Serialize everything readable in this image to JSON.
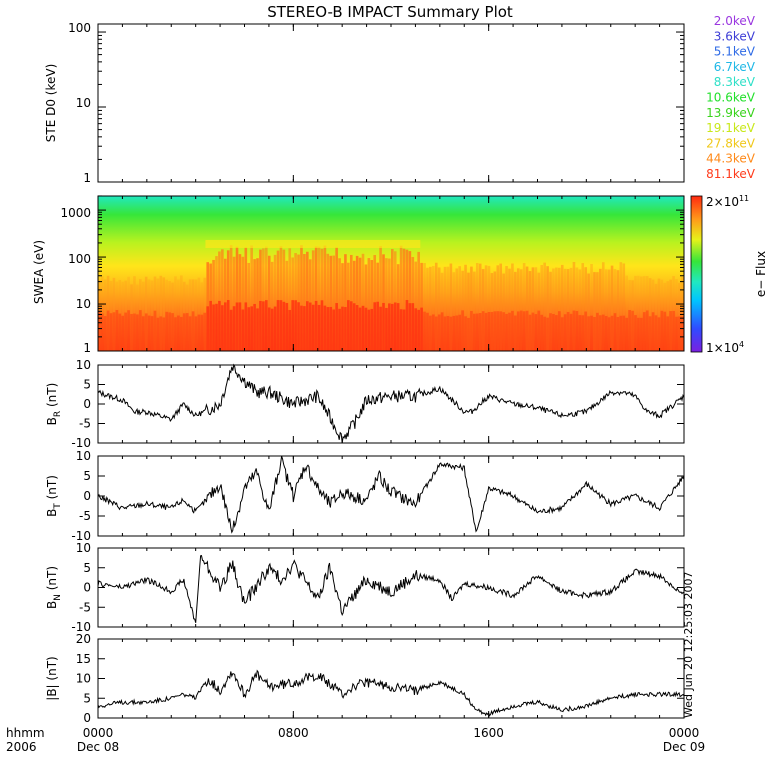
{
  "title": "STEREO-B IMPACT Summary Plot",
  "time_axis": {
    "row1": [
      "0000",
      "0800",
      "1600",
      "0000"
    ],
    "row2": [
      "Dec 08",
      "",
      "",
      "Dec 09"
    ],
    "left_row1": "hhmm",
    "left_row2": "2006",
    "hours": [
      0,
      8,
      16,
      24
    ]
  },
  "side_stamp": "Wed Jun 20 12:25:03 2007",
  "colors": {
    "spectrogram": [
      "#7b1fe0",
      "#2f4bff",
      "#00c4ff",
      "#21e8c0",
      "#36e63a",
      "#b9f21f",
      "#ffe51a",
      "#ff9a1a",
      "#ff4b1a",
      "#ff2a10"
    ]
  },
  "ste": {
    "ylabel": "STE D0 (keV)",
    "ticks": [
      "1",
      "10",
      "100"
    ],
    "energies": [
      {
        "label": "2.0keV",
        "color": "#9a36e0"
      },
      {
        "label": "3.6keV",
        "color": "#3d3dd6"
      },
      {
        "label": "5.1keV",
        "color": "#2f6be6"
      },
      {
        "label": "6.7keV",
        "color": "#1fb8e6"
      },
      {
        "label": "8.3keV",
        "color": "#2fe0c8"
      },
      {
        "label": "10.6keV",
        "color": "#22e02b"
      },
      {
        "label": "13.9keV",
        "color": "#39d31c"
      },
      {
        "label": "19.1keV",
        "color": "#c8e81a"
      },
      {
        "label": "27.8keV",
        "color": "#f0c81a"
      },
      {
        "label": "44.3keV",
        "color": "#ff8a1a"
      },
      {
        "label": "81.1keV",
        "color": "#ff3a1a"
      }
    ]
  },
  "swea": {
    "ylabel": "SWEA (eV)",
    "ticks": [
      "1",
      "10",
      "100",
      "1000"
    ],
    "colorbar": {
      "label": "e− Flux",
      "max_base": "2×10",
      "max_exp": "11",
      "min_base": "1×10",
      "min_exp": "4"
    }
  },
  "chart_data": [
    {
      "type": "line",
      "panel": "ste",
      "ylabel": "STE D0 (keV)",
      "ylim": [
        1,
        100
      ],
      "log_y": true,
      "series": []
    },
    {
      "type": "heatmap",
      "panel": "swea",
      "ylabel": "SWEA (eV)",
      "ylim": [
        1,
        2000
      ],
      "log_y": true,
      "xlim_hours": [
        0,
        24
      ]
    },
    {
      "type": "line",
      "panel": "br",
      "ylabel_main": "B",
      "ylabel_sub": "R",
      "ylabel_unit": " (nT)",
      "ylim": [
        -10,
        10
      ],
      "ticks": [
        "-10",
        "-5",
        "0",
        "5",
        "10"
      ],
      "x_hours": [
        0,
        1,
        1.5,
        2,
        3,
        3.5,
        4,
        5,
        5.5,
        6,
        6.5,
        7,
        8,
        9,
        10,
        10.5,
        11,
        12,
        13,
        14,
        15,
        15.3,
        16,
        17,
        18,
        19,
        20,
        21,
        21.5,
        22,
        22.5,
        23,
        24
      ],
      "values": [
        3,
        1,
        -2,
        -2,
        -4,
        0,
        -3,
        0,
        10,
        6,
        3,
        3,
        0,
        2,
        -9,
        -5,
        1,
        2,
        2,
        4,
        -2,
        -2,
        2,
        0,
        -1,
        -3,
        -2,
        3,
        3,
        2,
        -2,
        -3,
        2
      ]
    },
    {
      "type": "line",
      "panel": "bt",
      "ylabel_main": "B",
      "ylabel_sub": "T",
      "ylabel_unit": " (nT)",
      "ylim": [
        -10,
        10
      ],
      "ticks": [
        "-10",
        "-5",
        "0",
        "5",
        "10"
      ],
      "x_hours": [
        0,
        1,
        2,
        3,
        3.5,
        4,
        5,
        5.5,
        6,
        6.5,
        7,
        7.5,
        8,
        8.5,
        9,
        9.5,
        10,
        11,
        11.5,
        12,
        13,
        14,
        15,
        15.2,
        15.5,
        16,
        17,
        18,
        19,
        20,
        21,
        22,
        23,
        24
      ],
      "values": [
        0,
        -3,
        -2,
        -3,
        -1,
        -4,
        3,
        -9,
        2,
        6,
        -4,
        9,
        0,
        8,
        2,
        -2,
        1,
        -1,
        5,
        1,
        -2,
        8,
        7,
        0,
        -9,
        2,
        0,
        -4,
        -3,
        3,
        -2,
        0,
        -3,
        5
      ]
    },
    {
      "type": "line",
      "panel": "bn",
      "ylabel_main": "B",
      "ylabel_sub": "N",
      "ylabel_unit": " (nT)",
      "ylim": [
        -10,
        10
      ],
      "ticks": [
        "-10",
        "-5",
        "0",
        "5",
        "10"
      ],
      "x_hours": [
        0,
        1,
        2,
        3,
        3.5,
        4,
        4.2,
        5,
        5.5,
        6,
        7,
        7.5,
        8,
        9,
        9.5,
        10,
        11,
        12,
        13,
        14,
        14.5,
        15,
        16,
        17,
        18,
        19,
        20,
        21,
        22,
        23,
        24
      ],
      "values": [
        1,
        0,
        2,
        -1,
        2,
        -9,
        8,
        0,
        6,
        -4,
        5,
        2,
        6,
        -3,
        5,
        -6,
        2,
        -1,
        3,
        2,
        -3,
        1,
        0,
        -2,
        3,
        -1,
        -2,
        -1,
        4,
        3,
        -2
      ]
    },
    {
      "type": "line",
      "panel": "bmag",
      "ylabel": "|B| (nT)",
      "ylim": [
        0,
        20
      ],
      "ticks": [
        "0",
        "5",
        "10",
        "15",
        "20"
      ],
      "x_hours": [
        0,
        1,
        2,
        3,
        3.5,
        4,
        4.5,
        5,
        5.5,
        6,
        6.5,
        7,
        8,
        9,
        10,
        10.5,
        11,
        12,
        13,
        14,
        15,
        15.5,
        16,
        16.5,
        17,
        18,
        19,
        20,
        21,
        22,
        23,
        24
      ],
      "values": [
        3,
        4,
        4,
        5,
        6,
        5,
        10,
        7,
        12,
        6,
        11,
        8,
        9,
        11,
        6,
        8,
        9,
        8,
        7,
        9,
        6,
        2,
        1,
        2,
        3,
        4,
        2,
        3,
        5,
        6,
        6,
        6
      ]
    }
  ]
}
